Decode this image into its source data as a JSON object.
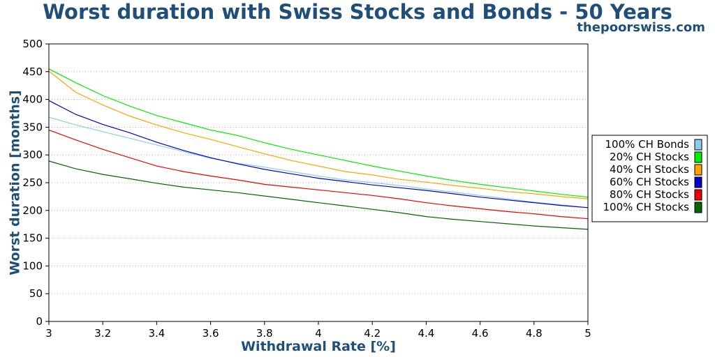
{
  "header": {
    "title": "Worst duration with Swiss Stocks and Bonds - 50 Years",
    "subtitle": "thepoorswiss.com"
  },
  "chart_data": {
    "type": "line",
    "title": "Worst duration with Swiss Stocks and Bonds - 50 Years",
    "subtitle": "thepoorswiss.com",
    "xlabel": "Withdrawal Rate [%]",
    "ylabel": "Worst duration [months]",
    "xlim": [
      3,
      5
    ],
    "ylim": [
      0,
      500
    ],
    "x_ticks": [
      "3",
      "3.2",
      "3.4",
      "3.6",
      "3.8",
      "4",
      "4.2",
      "4.4",
      "4.6",
      "4.8",
      "5"
    ],
    "y_ticks": [
      "0",
      "50",
      "100",
      "150",
      "200",
      "250",
      "300",
      "350",
      "400",
      "450",
      "500"
    ],
    "grid": "horizontal dotted",
    "legend_position": "right",
    "x": [
      3.0,
      3.1,
      3.2,
      3.3,
      3.4,
      3.5,
      3.6,
      3.7,
      3.8,
      3.9,
      4.0,
      4.1,
      4.2,
      4.3,
      4.4,
      4.5,
      4.6,
      4.7,
      4.8,
      4.9,
      5.0
    ],
    "series": [
      {
        "name": "100% CH Bonds",
        "color": "#87ceeb",
        "values": [
          368,
          354,
          342,
          330,
          318,
          306,
          294,
          285,
          278,
          270,
          262,
          255,
          250,
          245,
          239,
          233,
          227,
          221,
          215,
          210,
          205
        ]
      },
      {
        "name": "20% CH Stocks",
        "color": "#00ee00",
        "values": [
          455,
          430,
          407,
          388,
          371,
          358,
          345,
          335,
          322,
          310,
          300,
          290,
          280,
          271,
          262,
          254,
          247,
          241,
          235,
          229,
          224
        ]
      },
      {
        "name": "40% CH Stocks",
        "color": "#ffa500",
        "values": [
          451,
          413,
          390,
          370,
          354,
          340,
          328,
          315,
          302,
          290,
          280,
          270,
          264,
          256,
          251,
          245,
          240,
          234,
          230,
          225,
          221
        ]
      },
      {
        "name": "60% CH Stocks",
        "color": "#0000cc",
        "values": [
          398,
          373,
          355,
          340,
          323,
          308,
          295,
          284,
          274,
          266,
          258,
          252,
          246,
          241,
          236,
          230,
          224,
          219,
          214,
          209,
          205
        ]
      },
      {
        "name": "80% CH Stocks",
        "color": "#ee0000",
        "values": [
          345,
          327,
          310,
          295,
          280,
          270,
          262,
          255,
          247,
          242,
          237,
          232,
          227,
          221,
          214,
          208,
          203,
          198,
          194,
          189,
          185
        ]
      },
      {
        "name": "100% CH Stocks",
        "color": "#006400",
        "values": [
          289,
          275,
          265,
          257,
          249,
          242,
          237,
          232,
          226,
          220,
          214,
          208,
          202,
          196,
          189,
          184,
          180,
          176,
          172,
          169,
          166
        ]
      }
    ]
  }
}
